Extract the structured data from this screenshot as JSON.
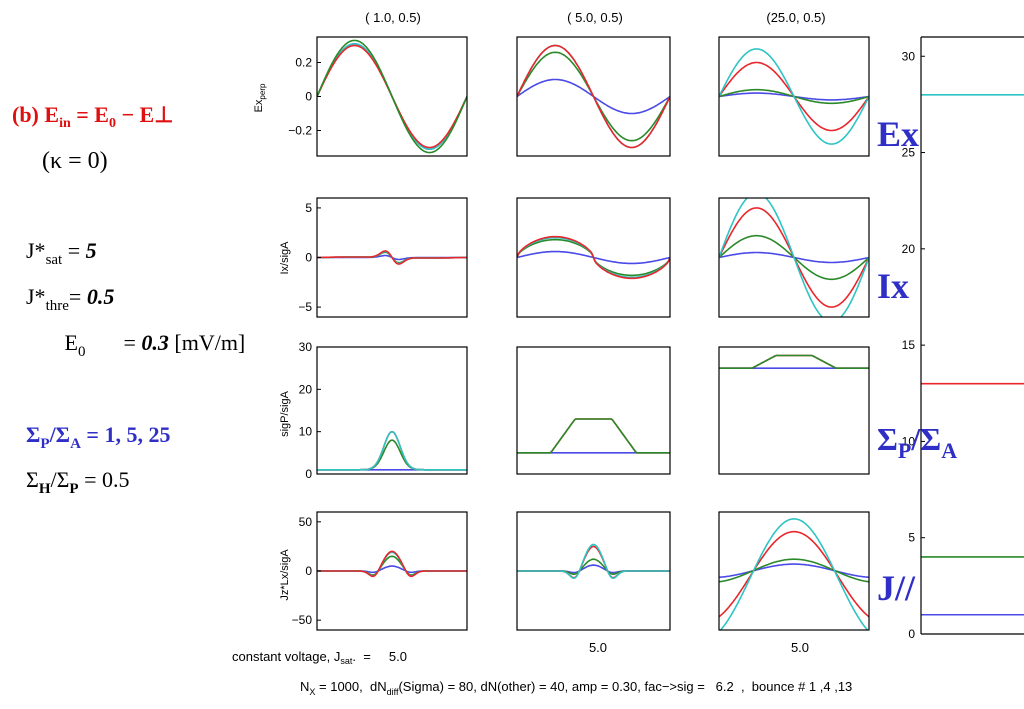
{
  "left_panel": {
    "heading": {
      "prefix": "(b) E",
      "sub_in": "in",
      "eq": " = E",
      "sub_0": "0",
      "minus": " − E",
      "perp": "⊥"
    },
    "kappa": "(κ = 0)",
    "jsat": {
      "label": "J*",
      "sub": "sat",
      "eq": " = ",
      "value": "5"
    },
    "jthre": {
      "label": "J*",
      "sub": "thre",
      "eq": "= ",
      "value": "0.5"
    },
    "e0": {
      "label": "E",
      "sub": "0",
      "eq": "    = ",
      "value": "0.3",
      "unit": " [mV/m]"
    },
    "sigma_pa": {
      "sym1": "Σ",
      "sub1": "P",
      "slash": "/Σ",
      "sub2": "A",
      "rest": " = 1, 5, 25"
    },
    "sigma_hp": {
      "sym1": "Σ",
      "sub1": "H",
      "slash": "/Σ",
      "sub2": "P",
      "rest": " = 0.5"
    }
  },
  "column_titles": [
    "( 1.0,  0.5)",
    "( 5.0,  0.5)",
    "(25.0,  0.5)"
  ],
  "row_labels": [
    {
      "main": "Ex",
      "sub": "perp"
    },
    {
      "main": "Ix/sigA",
      "sub": ""
    },
    {
      "main": "sigP/sigA",
      "sub": ""
    },
    {
      "main": "Jz*Lx/sigA",
      "sub": ""
    }
  ],
  "right_labels": {
    "ex": "Ex",
    "ix": "Ix",
    "sigma": {
      "s1": "Σ",
      "p": "P",
      "slash": "/Σ",
      "a": "A"
    },
    "jpar": "J//"
  },
  "bottom": {
    "left_caption": "constant voltage, J",
    "left_caption_sub": "sat",
    "left_caption_end": ".  =     5.0",
    "col_captions": [
      "5.0",
      "5.0"
    ],
    "footer_prefix": "N",
    "footer_sub_x": "X",
    "footer_mid": " = 1000,  dN",
    "footer_sub_diff": "diff",
    "footer_rest": "(Sigma) = 80, dN(other) = 40, amp = 0.30, fac−>sig =   6.2  ,  bounce # 1 ,4 ,13"
  },
  "colors": {
    "red": "#e8262c",
    "green": "#2a8a2a",
    "blue": "#4a4ae8",
    "cyan": "#2ec4c4",
    "label_red": "#e01010",
    "label_blue": "#2f2fc8"
  },
  "chart_data": {
    "type": "line",
    "grid": "4x3 small multiples + right bar panel",
    "x_range": [
      0,
      1
    ],
    "rows": [
      {
        "ylabel": "Ex_perp",
        "ylim": [
          -0.35,
          0.35
        ],
        "yticks": [
          -0.2,
          0,
          0.2
        ],
        "ytick_labels": [
          "−0.2",
          "0",
          "0.2"
        ],
        "panels": [
          {
            "title": "( 1.0,  0.5)",
            "series": [
              {
                "color": "blue",
                "amp": 0.31,
                "shape": "sine"
              },
              {
                "color": "cyan",
                "amp": 0.31,
                "shape": "sine"
              },
              {
                "color": "red",
                "amp": 0.3,
                "shape": "sine"
              },
              {
                "color": "green",
                "amp": 0.33,
                "shape": "sine"
              }
            ]
          },
          {
            "title": "( 5.0,  0.5)",
            "series": [
              {
                "color": "blue",
                "amp": 0.1,
                "shape": "sine"
              },
              {
                "color": "green",
                "amp": 0.26,
                "shape": "sine"
              },
              {
                "color": "cyan",
                "amp": 0.3,
                "shape": "sine"
              },
              {
                "color": "red",
                "amp": 0.3,
                "shape": "sine"
              }
            ]
          },
          {
            "title": "(25.0,  0.5)",
            "series": [
              {
                "color": "blue",
                "amp": 0.02,
                "shape": "sine"
              },
              {
                "color": "green",
                "amp": 0.04,
                "shape": "sine"
              },
              {
                "color": "red",
                "amp": 0.2,
                "shape": "sine"
              },
              {
                "color": "cyan",
                "amp": 0.28,
                "shape": "sine"
              }
            ]
          }
        ]
      },
      {
        "ylabel": "Ix/sigA",
        "ylim": [
          -6,
          6
        ],
        "yticks": [
          -5,
          0,
          5
        ],
        "ytick_labels": [
          "−5",
          "0",
          "5"
        ],
        "panels": [
          {
            "series": [
              {
                "color": "blue",
                "amp": 0.3,
                "shape": "ripple"
              },
              {
                "color": "green",
                "amp": 0.8,
                "shape": "ripple"
              },
              {
                "color": "cyan",
                "amp": 0.9,
                "shape": "ripple"
              },
              {
                "color": "red",
                "amp": 1.0,
                "shape": "ripple"
              }
            ]
          },
          {
            "series": [
              {
                "color": "blue",
                "amp": 0.6,
                "shape": "sine"
              },
              {
                "color": "green",
                "amp": 1.8,
                "shape": "flatsine"
              },
              {
                "color": "cyan",
                "amp": 2.0,
                "shape": "flatsine"
              },
              {
                "color": "red",
                "amp": 2.1,
                "shape": "flatsine"
              }
            ]
          },
          {
            "series": [
              {
                "color": "blue",
                "amp": 0.5,
                "shape": "sine"
              },
              {
                "color": "green",
                "amp": 2.2,
                "shape": "sine"
              },
              {
                "color": "red",
                "amp": 5.0,
                "shape": "sine"
              },
              {
                "color": "cyan",
                "amp": 6.5,
                "shape": "sine"
              }
            ]
          }
        ]
      },
      {
        "ylabel": "sigP/sigA",
        "ylim": [
          0,
          30
        ],
        "yticks": [
          0,
          10,
          20,
          30
        ],
        "ytick_labels": [
          "0",
          "10",
          "20",
          "30"
        ],
        "panels": [
          {
            "series": [
              {
                "color": "blue",
                "base": 1,
                "peak": 1,
                "shape": "bump"
              },
              {
                "color": "green",
                "base": 1,
                "peak": 8,
                "shape": "bump"
              },
              {
                "color": "red",
                "base": 1,
                "peak": 10,
                "shape": "bump"
              },
              {
                "color": "cyan",
                "base": 1,
                "peak": 10,
                "shape": "bump"
              }
            ]
          },
          {
            "series": [
              {
                "color": "blue",
                "base": 5,
                "peak": 5,
                "shape": "plateau"
              },
              {
                "color": "red",
                "base": 5,
                "peak": 13,
                "shape": "plateau"
              },
              {
                "color": "green",
                "base": 5,
                "peak": 13,
                "shape": "plateau"
              }
            ]
          },
          {
            "series": [
              {
                "color": "blue",
                "base": 25,
                "peak": 25,
                "shape": "plateau"
              },
              {
                "color": "red",
                "base": 25,
                "peak": 28,
                "shape": "plateau"
              },
              {
                "color": "green",
                "base": 25,
                "peak": 28,
                "shape": "plateau"
              }
            ]
          }
        ]
      },
      {
        "ylabel": "Jz*Lx/sigA",
        "ylim": [
          -60,
          60
        ],
        "yticks": [
          -50,
          0,
          50
        ],
        "ytick_labels": [
          "−50",
          "0",
          "50"
        ],
        "panels": [
          {
            "series": [
              {
                "color": "blue",
                "amp": 5,
                "shape": "wavelet"
              },
              {
                "color": "green",
                "amp": 15,
                "shape": "wavelet"
              },
              {
                "color": "cyan",
                "amp": 19,
                "shape": "wavelet"
              },
              {
                "color": "red",
                "amp": 20,
                "shape": "wavelet"
              }
            ]
          },
          {
            "series": [
              {
                "color": "blue",
                "amp": 6,
                "shape": "wavelet"
              },
              {
                "color": "green",
                "amp": 12,
                "shape": "wavelet"
              },
              {
                "color": "red",
                "amp": 25,
                "shape": "wavelet"
              },
              {
                "color": "cyan",
                "amp": 27,
                "shape": "wavelet"
              }
            ]
          },
          {
            "series": [
              {
                "color": "blue",
                "amp": 7,
                "shape": "bell"
              },
              {
                "color": "green",
                "amp": 12,
                "shape": "bell"
              },
              {
                "color": "red",
                "amp": 40,
                "shape": "bell"
              },
              {
                "color": "cyan",
                "amp": 53,
                "shape": "bell"
              }
            ]
          }
        ]
      }
    ],
    "right_panel": {
      "type": "horizontal_lines",
      "ylim": [
        0,
        31
      ],
      "yticks": [
        0,
        5,
        10,
        15,
        20,
        25,
        30
      ],
      "ytick_labels": [
        "0",
        "5",
        "10",
        "15",
        "20",
        "25",
        "30"
      ],
      "lines": [
        {
          "color": "cyan",
          "y": 28
        },
        {
          "color": "red",
          "y": 13
        },
        {
          "color": "green",
          "y": 4
        },
        {
          "color": "blue",
          "y": 1
        }
      ]
    }
  }
}
